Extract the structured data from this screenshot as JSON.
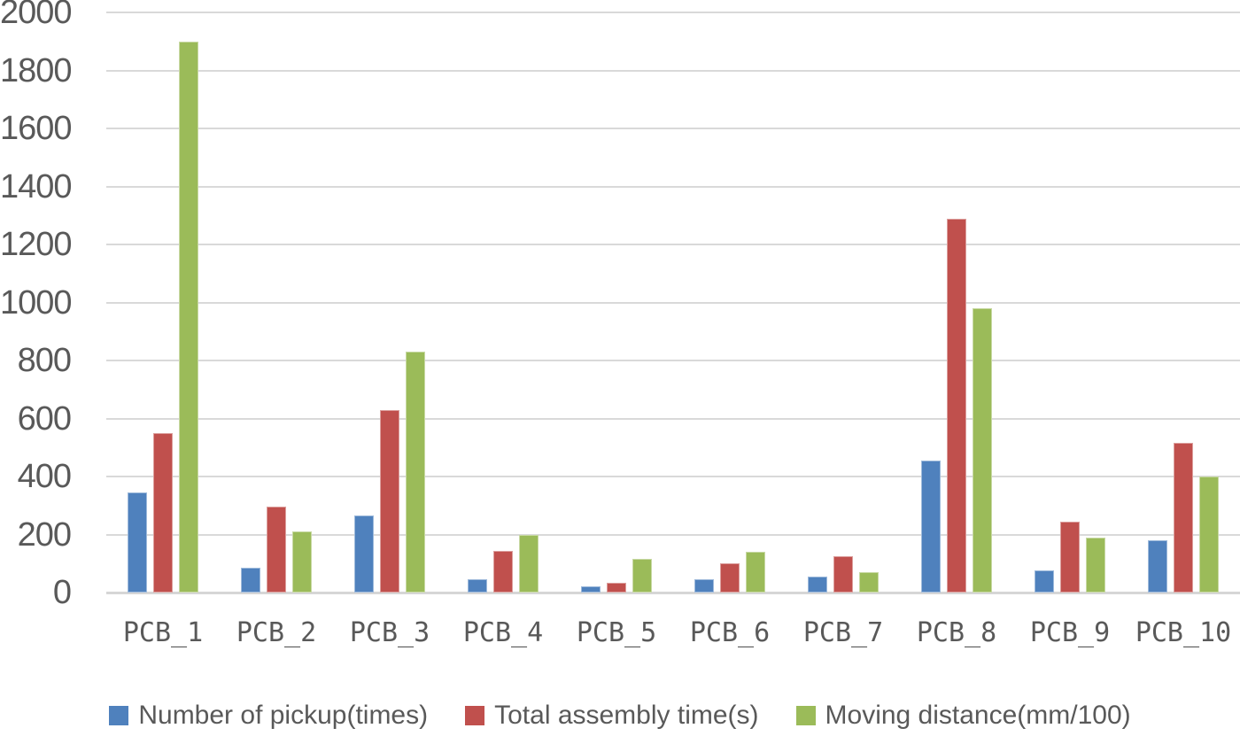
{
  "chart_data": {
    "type": "bar",
    "title": "",
    "xlabel": "",
    "ylabel": "",
    "categories": [
      "PCB_1",
      "PCB_2",
      "PCB_3",
      "PCB_4",
      "PCB_5",
      "PCB_6",
      "PCB_7",
      "PCB_8",
      "PCB_9",
      "PCB_10"
    ],
    "series": [
      {
        "name": "Number of pickup(times)",
        "color": "#4F81BD",
        "values": [
          345,
          85,
          265,
          45,
          20,
          45,
          55,
          455,
          75,
          180
        ]
      },
      {
        "name": "Total assembly time(s)",
        "color": "#C0504D",
        "values": [
          550,
          295,
          630,
          145,
          35,
          100,
          125,
          1290,
          245,
          515
        ]
      },
      {
        "name": "Moving distance(mm/100)",
        "color": "#9BBB59",
        "values": [
          1900,
          210,
          830,
          200,
          115,
          140,
          70,
          980,
          190,
          400
        ]
      }
    ],
    "ylim": [
      0,
      2000
    ],
    "ytick_step": 200,
    "yticks": [
      "0",
      "200",
      "400",
      "600",
      "800",
      "1000",
      "1200",
      "1400",
      "1600",
      "1800",
      "2000"
    ],
    "grid": true,
    "legend_position": "bottom",
    "colors": {
      "axis_text": "#595959",
      "gridline": "#D9D9D9",
      "axis_line": "#D6D6D6",
      "background": "#FFFFFF"
    }
  }
}
